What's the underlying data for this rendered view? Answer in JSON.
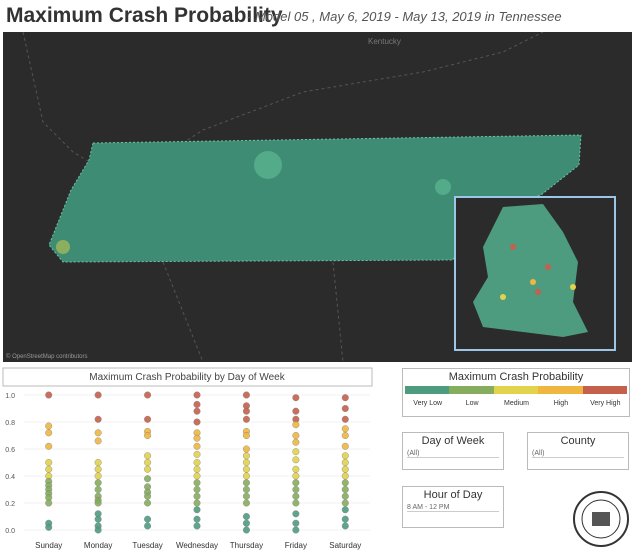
{
  "header": {
    "title": "Maximum Crash Probability",
    "subtitle": "- Model 05 ,  May 6, 2019 - May 13, 2019 in Tennessee"
  },
  "map": {
    "state_label": "Kentucky",
    "attribution": "© OpenStreetMap contributors"
  },
  "chart_data": {
    "type": "strip",
    "title": "Maximum Crash Probability by Day of Week",
    "categories": [
      "Sunday",
      "Monday",
      "Tuesday",
      "Wednesday",
      "Thursday",
      "Friday",
      "Saturday"
    ],
    "values": [
      [
        1.0,
        0.77,
        0.72,
        0.62,
        0.5,
        0.45,
        0.4,
        0.36,
        0.33,
        0.3,
        0.27,
        0.24,
        0.2,
        0.05,
        0.02
      ],
      [
        1.0,
        0.82,
        0.72,
        0.66,
        0.5,
        0.45,
        0.4,
        0.35,
        0.3,
        0.25,
        0.22,
        0.2,
        0.12,
        0.08,
        0.03,
        0.0
      ],
      [
        1.0,
        0.82,
        0.73,
        0.7,
        0.55,
        0.5,
        0.45,
        0.38,
        0.32,
        0.28,
        0.25,
        0.2,
        0.08,
        0.03
      ],
      [
        1.0,
        0.93,
        0.88,
        0.8,
        0.72,
        0.68,
        0.62,
        0.56,
        0.5,
        0.45,
        0.4,
        0.35,
        0.3,
        0.25,
        0.2,
        0.15,
        0.08,
        0.03
      ],
      [
        1.0,
        0.92,
        0.88,
        0.82,
        0.73,
        0.7,
        0.6,
        0.55,
        0.5,
        0.45,
        0.4,
        0.35,
        0.3,
        0.25,
        0.2,
        0.1,
        0.05,
        0.0
      ],
      [
        0.98,
        0.88,
        0.82,
        0.78,
        0.7,
        0.65,
        0.58,
        0.52,
        0.45,
        0.4,
        0.35,
        0.3,
        0.25,
        0.2,
        0.12,
        0.05,
        0.0
      ],
      [
        0.98,
        0.9,
        0.82,
        0.75,
        0.7,
        0.62,
        0.55,
        0.5,
        0.45,
        0.4,
        0.35,
        0.3,
        0.25,
        0.2,
        0.15,
        0.08,
        0.03
      ]
    ],
    "ylim": [
      0,
      1
    ],
    "yticks": [
      {
        "value": 0,
        "label": "0.0"
      },
      0.2,
      0.4,
      0.6,
      0.8,
      {
        "value": 1,
        "label": "1.0"
      }
    ]
  },
  "legend": {
    "title": "Maximum Crash Probability",
    "items": [
      {
        "label": "Very Low",
        "color": "#4e9c80"
      },
      {
        "label": "Low",
        "color": "#86ad5e"
      },
      {
        "label": "Medium",
        "color": "#e2d24c"
      },
      {
        "label": "High",
        "color": "#efb640"
      },
      {
        "label": "Very High",
        "color": "#c4604b"
      }
    ]
  },
  "filters": [
    {
      "label": "Day of Week",
      "value": "(All)"
    },
    {
      "label": "County",
      "value": "(All)"
    },
    {
      "label": "Hour of Day",
      "value": "8 AM - 12 PM"
    }
  ]
}
